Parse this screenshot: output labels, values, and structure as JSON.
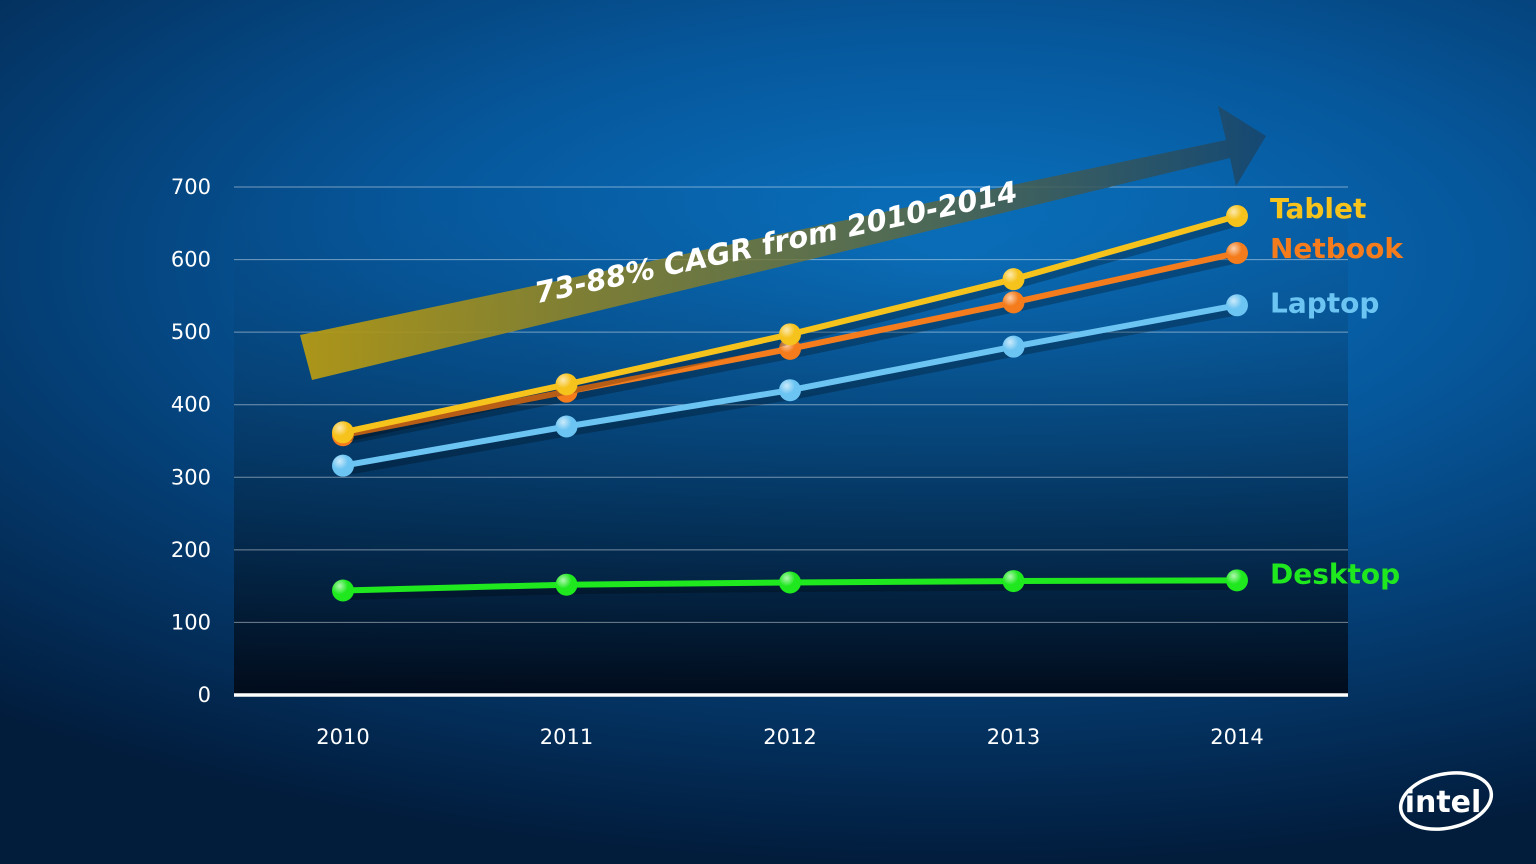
{
  "chart_data": {
    "type": "line",
    "title": "",
    "xlabel": "",
    "ylabel": "",
    "x": [
      "2010",
      "2011",
      "2012",
      "2013",
      "2014"
    ],
    "ylim": [
      0,
      700
    ],
    "yticks": [
      "0",
      "100",
      "200",
      "300",
      "400",
      "500",
      "600",
      "700"
    ],
    "grid": true,
    "legend": "right, labels at line ends",
    "series": [
      {
        "name": "Tablet",
        "color": "#f6c21c",
        "values": [
          362,
          428,
          497,
          573,
          660
        ]
      },
      {
        "name": "Netbook",
        "color": "#f47c1c",
        "values": [
          358,
          418,
          477,
          541,
          609
        ]
      },
      {
        "name": "Laptop",
        "color": "#6cc4f2",
        "values": [
          316,
          370,
          420,
          480,
          537
        ]
      },
      {
        "name": "Desktop",
        "color": "#1fe81f",
        "values": [
          144,
          152,
          155,
          157,
          158
        ]
      }
    ],
    "annotations": [
      {
        "text": "73-88% CAGR from 2010-2014"
      }
    ]
  },
  "logo": {
    "text": "intel",
    "icon": "intel-logo-icon"
  }
}
